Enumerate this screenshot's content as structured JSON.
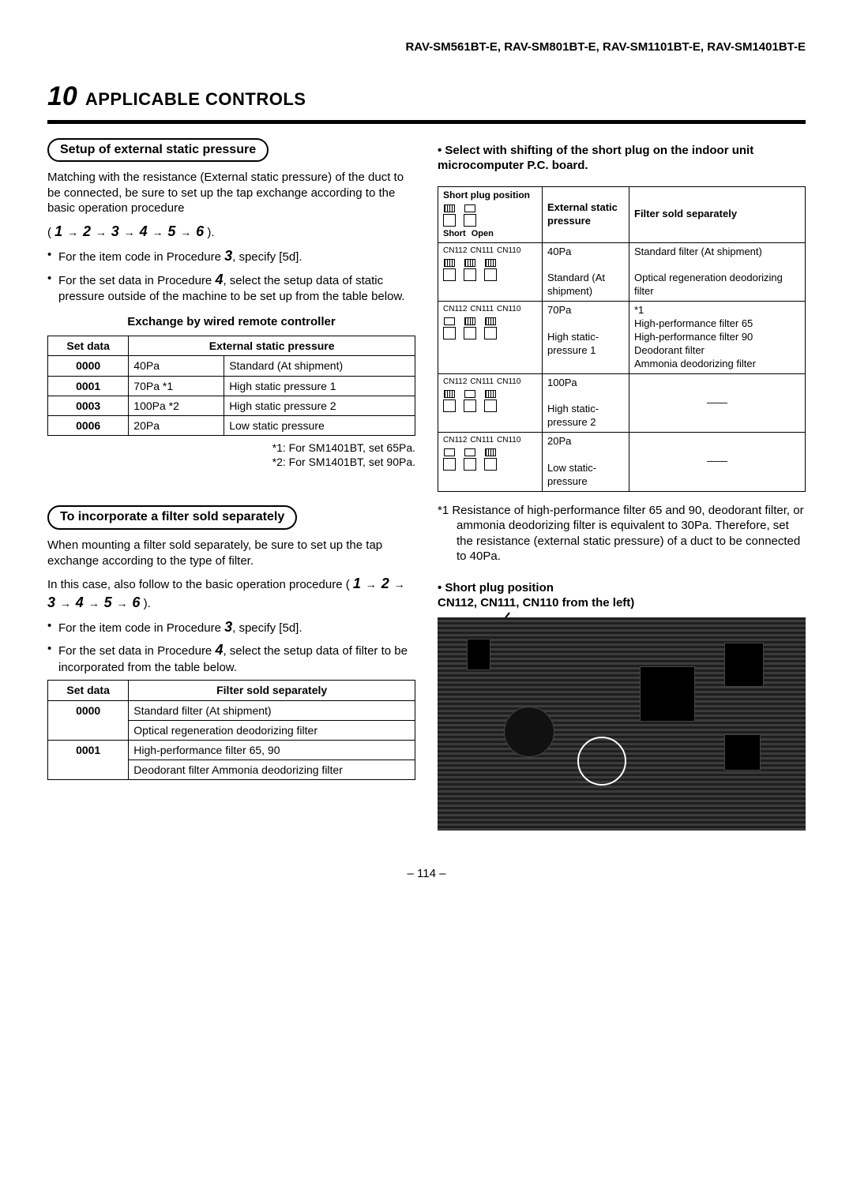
{
  "header_models": "RAV-SM561BT-E, RAV-SM801BT-E, RAV-SM1101BT-E, RAV-SM1401BT-E",
  "chapter_num": "10",
  "chapter_title": "APPLICABLE CONTROLS",
  "left": {
    "pill1": "Setup of external static pressure",
    "para1": "Matching with the resistance (External static pressure) of the duct to be connected, be sure to set up the tap exchange according to the basic operation procedure",
    "seq_open": "( ",
    "seq_close": " ).",
    "seq_nums": [
      "1",
      "2",
      "3",
      "4",
      "5",
      "6"
    ],
    "bullet1_pre": "For the item code in Procedure ",
    "bullet1_num": "3",
    "bullet1_post": ", specify [5d].",
    "bullet2_pre": "For the set data in Procedure ",
    "bullet2_num": "4",
    "bullet2_post": ", select the setup data of static pressure outside of the machine to be set up from the table below.",
    "subhead1": "Exchange by wired remote controller",
    "table1": {
      "h1": "Set data",
      "h2": "External static pressure",
      "rows": [
        [
          "0000",
          "40Pa",
          "Standard (At shipment)"
        ],
        [
          "0001",
          "70Pa  *1",
          "High static pressure 1"
        ],
        [
          "0003",
          "100Pa  *2",
          "High static pressure 2"
        ],
        [
          "0006",
          "20Pa",
          "Low static pressure"
        ]
      ]
    },
    "note1": "*1: For SM1401BT, set 65Pa.",
    "note2": "*2: For SM1401BT, set 90Pa.",
    "pill2": "To incorporate a filter sold separately",
    "para2": "When mounting a filter sold separately, be sure to set up the tap exchange according to the type of filter.",
    "para3_pre": "In this case, also follow to the basic operation procedure ( ",
    "para3_post": " ).",
    "bullet3_pre": "For the item code in Procedure ",
    "bullet3_num": "3",
    "bullet3_post": ", specify [5d].",
    "bullet4_pre": "For the set data in Procedure ",
    "bullet4_num": "4",
    "bullet4_post": ", select the setup data of filter to be incorporated from the table below.",
    "table2": {
      "h1": "Set data",
      "h2": "Filter sold separately",
      "rows": [
        [
          "0000",
          "Standard filter (At shipment)"
        ],
        [
          "",
          "Optical regeneration deodorizing filter"
        ],
        [
          "0001",
          "High-performance filter 65, 90"
        ],
        [
          "",
          "Deodorant filter    Ammonia deodorizing filter"
        ]
      ]
    }
  },
  "right": {
    "heading": "• Select with shifting of the short plug on the indoor unit microcomputer P.C. board.",
    "plugtable": {
      "hdr1": "Short plug position",
      "short": "Short",
      "open": "Open",
      "h2": "External static pressure",
      "h3": "Filter sold separately",
      "cn": [
        "CN112",
        "CN111",
        "CN110"
      ],
      "rows": [
        {
          "pressure": "40Pa",
          "pressure2": "Standard (At shipment)",
          "filter": "Standard filter (At shipment)",
          "filter2": "Optical regeneration deodorizing filter",
          "shaded": [
            true,
            true,
            true
          ]
        },
        {
          "pressure": "70Pa",
          "pressure2": "High static-pressure 1",
          "filter": "*1\nHigh-performance filter 65\nHigh-performance filter 90\nDeodorant filter\nAmmonia deodorizing filter",
          "shaded": [
            false,
            true,
            true
          ]
        },
        {
          "pressure": "100Pa",
          "pressure2": "High static-pressure 2",
          "filter": "——",
          "shaded": [
            true,
            false,
            true
          ]
        },
        {
          "pressure": "20Pa",
          "pressure2": "Low static-pressure",
          "filter": "——",
          "shaded": [
            false,
            false,
            true
          ]
        }
      ]
    },
    "footnote": "*1  Resistance of high-performance filter 65 and 90, deodorant filter, or ammonia deodorizing filter is equivalent to 30Pa. Therefore, set the resistance (external static pressure) of a duct to be connected to 40Pa.",
    "board_caption": "• Short plug position\n  CN112, CN111, CN110 from the left)"
  },
  "page_num": "– 114 –"
}
